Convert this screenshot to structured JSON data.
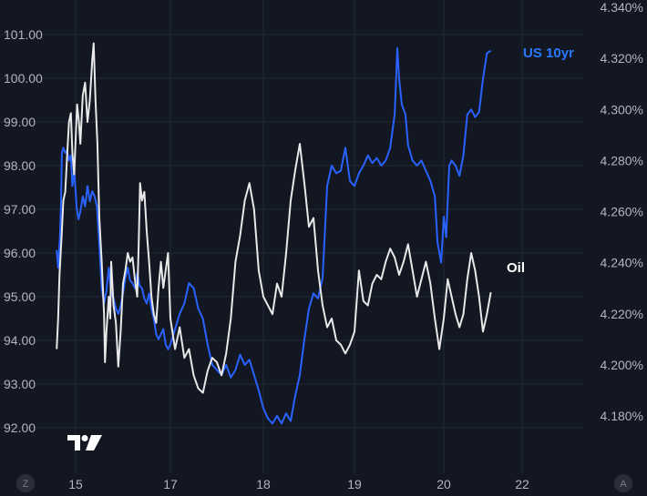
{
  "chart_data": {
    "type": "line",
    "title": "",
    "xlabel": "",
    "ylabel": "",
    "x_ticks": [
      "15",
      "17",
      "18",
      "19",
      "20",
      "22"
    ],
    "x_tick_positions": [
      15,
      17,
      18,
      19,
      20,
      21
    ],
    "xlim": [
      14.4,
      21.3
    ],
    "left_axis": {
      "ticks": [
        "101.00",
        "100.00",
        "99.00",
        "98.00",
        "97.00",
        "96.00",
        "95.00",
        "94.00",
        "93.00",
        "92.00"
      ],
      "ylim": [
        91.6,
        101.5
      ]
    },
    "right_axis": {
      "ticks": [
        "4.340%",
        "4.320%",
        "4.300%",
        "4.280%",
        "4.260%",
        "4.240%",
        "4.220%",
        "4.200%",
        "4.180%"
      ],
      "ylim": [
        4.169,
        4.341
      ]
    },
    "series": [
      {
        "name": "US 10yr",
        "axis": "right",
        "color": "#2962ff",
        "label_color": "#2979ff",
        "points": [
          [
            14.6,
            4.245
          ],
          [
            14.63,
            4.238
          ],
          [
            14.67,
            4.25
          ],
          [
            14.69,
            4.262
          ],
          [
            14.71,
            4.283
          ],
          [
            14.74,
            4.285
          ],
          [
            14.78,
            4.283
          ],
          [
            14.82,
            4.284
          ],
          [
            14.86,
            4.28
          ],
          [
            14.9,
            4.282
          ],
          [
            14.93,
            4.27
          ],
          [
            14.97,
            4.276
          ],
          [
            15.0,
            4.268
          ],
          [
            15.02,
            4.262
          ],
          [
            15.06,
            4.257
          ],
          [
            15.1,
            4.26
          ],
          [
            15.15,
            4.266
          ],
          [
            15.2,
            4.262
          ],
          [
            15.25,
            4.27
          ],
          [
            15.3,
            4.264
          ],
          [
            15.35,
            4.268
          ],
          [
            15.4,
            4.266
          ],
          [
            15.45,
            4.262
          ],
          [
            15.5,
            4.247
          ],
          [
            15.55,
            4.23
          ],
          [
            15.6,
            4.224
          ],
          [
            15.65,
            4.229
          ],
          [
            15.7,
            4.238
          ],
          [
            15.75,
            4.228
          ],
          [
            15.8,
            4.226
          ],
          [
            15.85,
            4.222
          ],
          [
            15.9,
            4.22
          ],
          [
            15.95,
            4.223
          ],
          [
            16.0,
            4.228
          ],
          [
            16.05,
            4.234
          ],
          [
            16.1,
            4.238
          ],
          [
            16.15,
            4.233
          ],
          [
            16.2,
            4.232
          ],
          [
            16.25,
            4.23
          ],
          [
            16.3,
            4.236
          ],
          [
            16.35,
            4.231
          ],
          [
            16.4,
            4.23
          ],
          [
            16.45,
            4.226
          ],
          [
            16.5,
            4.224
          ],
          [
            16.55,
            4.228
          ],
          [
            16.6,
            4.222
          ],
          [
            16.65,
            4.218
          ],
          [
            16.7,
            4.212
          ],
          [
            16.75,
            4.21
          ],
          [
            16.8,
            4.212
          ],
          [
            16.85,
            4.214
          ],
          [
            16.9,
            4.208
          ],
          [
            16.95,
            4.206
          ],
          [
            17.0,
            4.208
          ],
          [
            17.05,
            4.214
          ],
          [
            17.1,
            4.22
          ],
          [
            17.15,
            4.224
          ],
          [
            17.2,
            4.232
          ],
          [
            17.25,
            4.23
          ],
          [
            17.3,
            4.222
          ],
          [
            17.35,
            4.218
          ],
          [
            17.4,
            4.208
          ],
          [
            17.45,
            4.2
          ],
          [
            17.5,
            4.198
          ],
          [
            17.55,
            4.196
          ],
          [
            17.6,
            4.2
          ],
          [
            17.65,
            4.195
          ],
          [
            17.7,
            4.198
          ],
          [
            17.75,
            4.204
          ],
          [
            17.8,
            4.2
          ],
          [
            17.85,
            4.202
          ],
          [
            17.9,
            4.196
          ],
          [
            17.95,
            4.19
          ],
          [
            18.0,
            4.183
          ],
          [
            18.05,
            4.179
          ],
          [
            18.1,
            4.177
          ],
          [
            18.15,
            4.18
          ],
          [
            18.2,
            4.177
          ],
          [
            18.25,
            4.181
          ],
          [
            18.3,
            4.178
          ],
          [
            18.35,
            4.188
          ],
          [
            18.4,
            4.196
          ],
          [
            18.45,
            4.21
          ],
          [
            18.5,
            4.222
          ],
          [
            18.55,
            4.228
          ],
          [
            18.6,
            4.226
          ],
          [
            18.65,
            4.234
          ],
          [
            18.7,
            4.27
          ],
          [
            18.75,
            4.278
          ],
          [
            18.8,
            4.275
          ],
          [
            18.85,
            4.276
          ],
          [
            18.9,
            4.285
          ],
          [
            18.95,
            4.272
          ],
          [
            19.0,
            4.27
          ],
          [
            19.05,
            4.275
          ],
          [
            19.1,
            4.278
          ],
          [
            19.15,
            4.282
          ],
          [
            19.2,
            4.279
          ],
          [
            19.25,
            4.281
          ],
          [
            19.3,
            4.278
          ],
          [
            19.35,
            4.28
          ],
          [
            19.4,
            4.285
          ],
          [
            19.45,
            4.298
          ],
          [
            19.48,
            4.324
          ],
          [
            19.5,
            4.312
          ],
          [
            19.53,
            4.302
          ],
          [
            19.57,
            4.298
          ],
          [
            19.6,
            4.286
          ],
          [
            19.65,
            4.28
          ],
          [
            19.7,
            4.278
          ],
          [
            19.75,
            4.28
          ],
          [
            19.8,
            4.276
          ],
          [
            19.85,
            4.272
          ],
          [
            19.9,
            4.266
          ],
          [
            19.93,
            4.248
          ],
          [
            19.97,
            4.24
          ],
          [
            20.0,
            4.258
          ],
          [
            20.03,
            4.25
          ],
          [
            20.07,
            4.278
          ],
          [
            20.1,
            4.28
          ],
          [
            20.15,
            4.278
          ],
          [
            20.2,
            4.274
          ],
          [
            20.25,
            4.282
          ],
          [
            20.3,
            4.298
          ],
          [
            20.35,
            4.3
          ],
          [
            20.4,
            4.297
          ],
          [
            20.45,
            4.299
          ],
          [
            20.5,
            4.312
          ],
          [
            20.55,
            4.322
          ],
          [
            20.6,
            4.323
          ]
        ]
      },
      {
        "name": "Oil",
        "axis": "left",
        "color": "#e8e8e8",
        "label_color": "#ffffff",
        "points": [
          [
            14.6,
            93.8
          ],
          [
            14.63,
            94.5
          ],
          [
            14.66,
            95.5
          ],
          [
            14.7,
            96.3
          ],
          [
            14.74,
            97.2
          ],
          [
            14.78,
            97.4
          ],
          [
            14.82,
            98.2
          ],
          [
            14.86,
            99.0
          ],
          [
            14.9,
            99.2
          ],
          [
            14.93,
            98.3
          ],
          [
            14.97,
            97.8
          ],
          [
            15.0,
            98.6
          ],
          [
            15.03,
            99.4
          ],
          [
            15.07,
            99.0
          ],
          [
            15.1,
            98.5
          ],
          [
            15.15,
            99.6
          ],
          [
            15.2,
            99.9
          ],
          [
            15.25,
            99.0
          ],
          [
            15.3,
            99.5
          ],
          [
            15.35,
            100.4
          ],
          [
            15.38,
            100.8
          ],
          [
            15.42,
            99.5
          ],
          [
            15.46,
            98.5
          ],
          [
            15.5,
            96.8
          ],
          [
            15.55,
            95.8
          ],
          [
            15.6,
            94.6
          ],
          [
            15.62,
            93.5
          ],
          [
            15.65,
            94.2
          ],
          [
            15.7,
            95.0
          ],
          [
            15.73,
            94.5
          ],
          [
            15.75,
            95.8
          ],
          [
            15.8,
            94.8
          ],
          [
            15.85,
            94.4
          ],
          [
            15.9,
            93.4
          ],
          [
            15.95,
            94.2
          ],
          [
            16.0,
            95.3
          ],
          [
            16.05,
            95.6
          ],
          [
            16.1,
            96.0
          ],
          [
            16.15,
            95.8
          ],
          [
            16.2,
            95.9
          ],
          [
            16.25,
            95.4
          ],
          [
            16.3,
            95.0
          ],
          [
            16.33,
            96.2
          ],
          [
            16.36,
            97.6
          ],
          [
            16.4,
            97.2
          ],
          [
            16.45,
            97.4
          ],
          [
            16.5,
            96.5
          ],
          [
            16.55,
            95.8
          ],
          [
            16.6,
            95.0
          ],
          [
            16.65,
            94.6
          ],
          [
            16.7,
            94.4
          ],
          [
            16.75,
            95.2
          ],
          [
            16.8,
            95.8
          ],
          [
            16.85,
            95.2
          ],
          [
            16.9,
            95.6
          ],
          [
            16.95,
            96.0
          ],
          [
            17.0,
            94.5
          ],
          [
            17.05,
            93.8
          ],
          [
            17.1,
            94.3
          ],
          [
            17.15,
            93.6
          ],
          [
            17.2,
            93.8
          ],
          [
            17.25,
            93.2
          ],
          [
            17.3,
            92.9
          ],
          [
            17.35,
            92.8
          ],
          [
            17.4,
            93.3
          ],
          [
            17.45,
            93.6
          ],
          [
            17.5,
            93.5
          ],
          [
            17.55,
            93.2
          ],
          [
            17.6,
            93.7
          ],
          [
            17.65,
            94.5
          ],
          [
            17.7,
            95.8
          ],
          [
            17.75,
            96.4
          ],
          [
            17.8,
            97.2
          ],
          [
            17.85,
            97.6
          ],
          [
            17.9,
            97.0
          ],
          [
            17.95,
            95.6
          ],
          [
            18.0,
            95.0
          ],
          [
            18.05,
            94.8
          ],
          [
            18.1,
            94.6
          ],
          [
            18.15,
            95.3
          ],
          [
            18.2,
            95.0
          ],
          [
            18.25,
            96.0
          ],
          [
            18.3,
            97.2
          ],
          [
            18.35,
            97.9
          ],
          [
            18.4,
            98.5
          ],
          [
            18.45,
            97.6
          ],
          [
            18.5,
            96.6
          ],
          [
            18.55,
            96.8
          ],
          [
            18.6,
            95.6
          ],
          [
            18.65,
            94.8
          ],
          [
            18.7,
            94.3
          ],
          [
            18.75,
            94.5
          ],
          [
            18.8,
            94.0
          ],
          [
            18.85,
            93.9
          ],
          [
            18.9,
            93.7
          ],
          [
            18.95,
            93.9
          ],
          [
            19.0,
            94.2
          ],
          [
            19.05,
            95.6
          ],
          [
            19.1,
            94.9
          ],
          [
            19.15,
            94.8
          ],
          [
            19.2,
            95.3
          ],
          [
            19.25,
            95.5
          ],
          [
            19.3,
            95.4
          ],
          [
            19.35,
            95.8
          ],
          [
            19.4,
            96.1
          ],
          [
            19.45,
            95.9
          ],
          [
            19.5,
            95.5
          ],
          [
            19.55,
            95.8
          ],
          [
            19.6,
            96.2
          ],
          [
            19.65,
            95.6
          ],
          [
            19.7,
            95.0
          ],
          [
            19.75,
            95.4
          ],
          [
            19.8,
            95.8
          ],
          [
            19.85,
            95.3
          ],
          [
            19.9,
            94.5
          ],
          [
            19.95,
            93.8
          ],
          [
            20.0,
            94.5
          ],
          [
            20.05,
            95.4
          ],
          [
            20.1,
            95.0
          ],
          [
            20.15,
            94.6
          ],
          [
            20.2,
            94.3
          ],
          [
            20.25,
            94.6
          ],
          [
            20.3,
            95.4
          ],
          [
            20.35,
            96.0
          ],
          [
            20.4,
            95.6
          ],
          [
            20.45,
            95.0
          ],
          [
            20.5,
            94.2
          ],
          [
            20.55,
            94.6
          ],
          [
            20.6,
            95.1
          ]
        ]
      }
    ]
  },
  "labels": {
    "us10yr": "US 10yr",
    "oil": "Oil"
  },
  "buttons": {
    "left_circle": "Z",
    "right_circle": "A"
  }
}
